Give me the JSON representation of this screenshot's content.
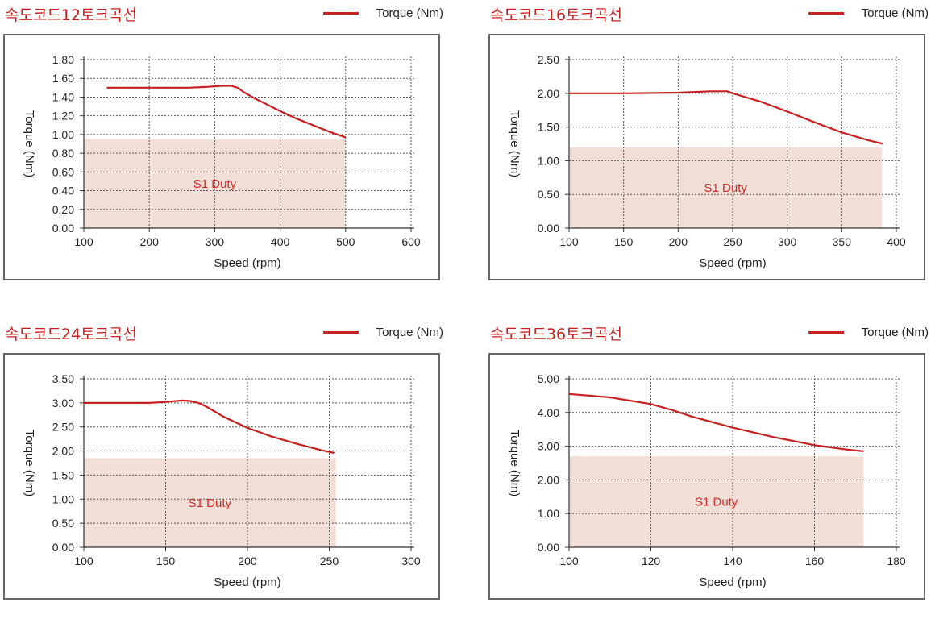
{
  "chart_data": [
    {
      "type": "line",
      "title": "속도코드12토크곡선",
      "legend": "Torque (Nm)",
      "legend_position": "top-right",
      "xlabel": "Speed (rpm)",
      "ylabel": "Torque (Nm)",
      "xlim": [
        100,
        600
      ],
      "ylim": [
        0,
        1.8
      ],
      "xticks": [
        "100",
        "200",
        "300",
        "400",
        "500",
        "600"
      ],
      "yticks": [
        "0.00",
        "0.20",
        "0.40",
        "0.60",
        "0.80",
        "1.00",
        "1.20",
        "1.40",
        "1.60",
        "1.80"
      ],
      "grid": true,
      "series": [
        {
          "name": "Torque (Nm)",
          "color": "#c8201e",
          "x": [
            135,
            200,
            260,
            290,
            310,
            325,
            335,
            345,
            360,
            380,
            400,
            425,
            450,
            475,
            500
          ],
          "y": [
            1.5,
            1.5,
            1.5,
            1.51,
            1.52,
            1.52,
            1.5,
            1.45,
            1.39,
            1.32,
            1.25,
            1.17,
            1.1,
            1.03,
            0.97
          ]
        }
      ],
      "duty_region": {
        "label": "S1 Duty",
        "x": [
          100,
          500
        ],
        "y_max": 0.95,
        "color": "#f2dfd7"
      }
    },
    {
      "type": "line",
      "title": "속도코드16토크곡선",
      "legend": "Torque (Nm)",
      "legend_position": "top-right",
      "xlabel": "Speed (rpm)",
      "ylabel": "Torque (Nm)",
      "xlim": [
        100,
        400
      ],
      "ylim": [
        0,
        2.5
      ],
      "xticks": [
        "100",
        "150",
        "200",
        "250",
        "300",
        "350",
        "400"
      ],
      "yticks": [
        "0.00",
        "0.50",
        "1.00",
        "1.50",
        "2.00",
        "2.50"
      ],
      "grid": true,
      "series": [
        {
          "name": "Torque (Nm)",
          "color": "#c8201e",
          "x": [
            100,
            150,
            200,
            230,
            245,
            250,
            275,
            300,
            325,
            350,
            375,
            388
          ],
          "y": [
            2.0,
            2.0,
            2.01,
            2.03,
            2.03,
            2.0,
            1.88,
            1.73,
            1.57,
            1.42,
            1.3,
            1.25
          ]
        }
      ],
      "duty_region": {
        "label": "S1 Duty",
        "x": [
          100,
          387
        ],
        "y_max": 1.2,
        "color": "#f2dfd7"
      }
    },
    {
      "type": "line",
      "title": "속도코드24토크곡선",
      "legend": "Torque (Nm)",
      "legend_position": "top-right",
      "xlabel": "Speed (rpm)",
      "ylabel": "Torque (Nm)",
      "xlim": [
        100,
        300
      ],
      "ylim": [
        0,
        3.5
      ],
      "xticks": [
        "100",
        "150",
        "200",
        "250",
        "300"
      ],
      "yticks": [
        "0.00",
        "0.50",
        "1.00",
        "1.50",
        "2.00",
        "2.50",
        "3.00",
        "3.50"
      ],
      "grid": true,
      "series": [
        {
          "name": "Torque (Nm)",
          "color": "#c8201e",
          "x": [
            100,
            120,
            140,
            150,
            160,
            165,
            170,
            175,
            185,
            200,
            215,
            230,
            245,
            253
          ],
          "y": [
            3.0,
            3.0,
            3.0,
            3.02,
            3.05,
            3.04,
            3.0,
            2.92,
            2.72,
            2.48,
            2.3,
            2.15,
            2.02,
            1.96
          ]
        }
      ],
      "duty_region": {
        "label": "S1 Duty",
        "x": [
          100,
          254
        ],
        "y_max": 1.85,
        "color": "#f2dfd7"
      }
    },
    {
      "type": "line",
      "title": "속도코드36토크곡선",
      "legend": "Torque (Nm)",
      "legend_position": "top-right",
      "xlabel": "Speed (rpm)",
      "ylabel": "Torque (Nm)",
      "xlim": [
        100,
        180
      ],
      "ylim": [
        0,
        5.0
      ],
      "xticks": [
        "100",
        "120",
        "140",
        "160",
        "180"
      ],
      "yticks": [
        "0.00",
        "1.00",
        "2.00",
        "3.00",
        "4.00",
        "5.00"
      ],
      "grid": true,
      "series": [
        {
          "name": "Torque (Nm)",
          "color": "#c8201e",
          "x": [
            100,
            110,
            120,
            125,
            130,
            140,
            150,
            160,
            168,
            172
          ],
          "y": [
            4.55,
            4.45,
            4.25,
            4.08,
            3.88,
            3.55,
            3.27,
            3.03,
            2.9,
            2.85
          ]
        }
      ],
      "duty_region": {
        "label": "S1 Duty",
        "x": [
          100,
          172
        ],
        "y_max": 2.7,
        "color": "#f2dfd7"
      }
    }
  ]
}
